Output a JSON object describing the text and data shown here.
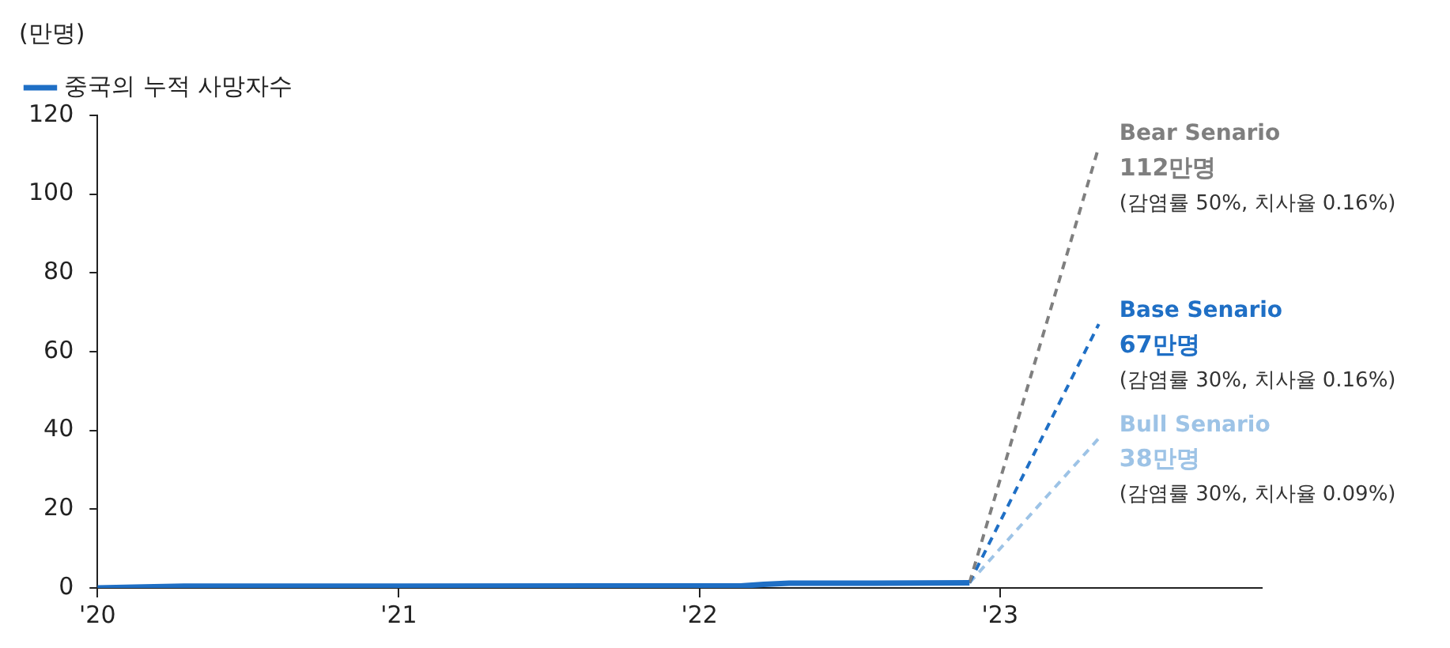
{
  "chart_data": {
    "type": "line",
    "ylabel": "(만명)",
    "xlim": [
      "2020-01-01",
      "2023-11-15"
    ],
    "xticks": [
      {
        "value": "2020-01-01",
        "label": "'20"
      },
      {
        "value": "2021-01-01",
        "label": "'21"
      },
      {
        "value": "2022-01-01",
        "label": "'22"
      },
      {
        "value": "2023-01-01",
        "label": "'23"
      }
    ],
    "ylim": [
      0,
      120
    ],
    "yticks": [
      0,
      20,
      40,
      60,
      80,
      100,
      120
    ],
    "grid": false,
    "legend": "top left",
    "marker": "none",
    "series": [
      {
        "name": "중국의 누적 사망자수",
        "color": "#1f6fc5",
        "line_style": "solid",
        "x": [
          "2020-01-01",
          "2020-02-15",
          "2020-04-15",
          "2022-02-20",
          "2022-03-20",
          "2022-04-20",
          "2022-08-01",
          "2022-11-25"
        ],
        "values": [
          0,
          0.2,
          0.46,
          0.5,
          0.9,
          1.2,
          1.2,
          1.3
        ]
      },
      {
        "name": "Bear Senario",
        "color": "#7f7f7f",
        "line_style": "dashed",
        "x": [
          "2022-11-25",
          "2023-05-01"
        ],
        "values": [
          1.3,
          112
        ]
      },
      {
        "name": "Base Senario",
        "color": "#1f6fc5",
        "line_style": "dashed",
        "x": [
          "2022-11-25",
          "2023-05-01"
        ],
        "values": [
          1.3,
          67
        ]
      },
      {
        "name": "Bull Senario",
        "color": "#9dc3e6",
        "line_style": "dashed",
        "x": [
          "2022-11-25",
          "2023-05-01"
        ],
        "values": [
          1.3,
          38
        ]
      }
    ],
    "annotations": [
      {
        "text": "112만명",
        "x": "2023-05-01",
        "y": 112
      },
      "(감염률 50%, 치사율 0.16%)",
      {
        "text": "67만명",
        "x": "2023-05-01",
        "y": 67
      },
      "(감염률 30%, 치사율 0.16%)",
      {
        "text": "38만명",
        "x": "2023-05-01",
        "y": 38
      },
      "(감염률 30%, 치사율 0.09%)"
    ]
  }
}
